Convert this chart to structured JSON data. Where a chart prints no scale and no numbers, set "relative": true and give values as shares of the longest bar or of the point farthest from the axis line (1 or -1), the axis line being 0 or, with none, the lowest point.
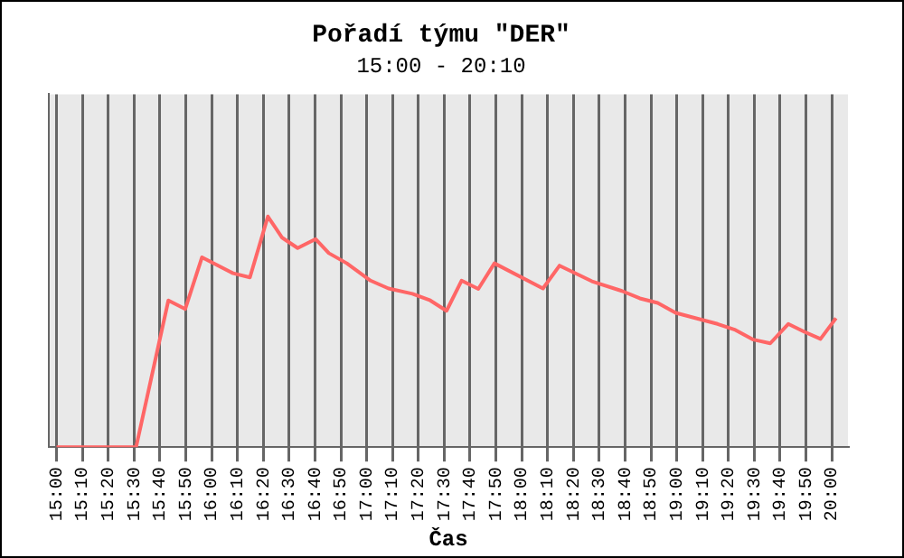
{
  "chart_data": {
    "type": "line",
    "title": "Pořadí týmu \"DER\"",
    "subtitle": "15:00 - 20:10",
    "xlabel": "Čas",
    "relative": true,
    "tick_labels": "x",
    "grid": "x",
    "legend": false,
    "marker": "none",
    "line_style": "solid",
    "x": [
      15.0,
      15.513,
      15.721,
      15.83,
      15.938,
      16.138,
      16.247,
      16.363,
      16.455,
      16.555,
      16.671,
      16.756,
      16.872,
      17.025,
      17.141,
      17.295,
      17.41,
      17.515,
      17.612,
      17.72,
      17.824,
      18.137,
      18.244,
      18.453,
      18.646,
      18.762,
      18.877,
      18.993,
      19.263,
      19.378,
      19.494,
      19.603,
      19.719,
      19.823,
      19.927,
      20.027
    ],
    "series": [
      {
        "color": "#ff6666",
        "values": [
          0,
          0,
          0.636,
          0.599,
          0.823,
          0.754,
          0.736,
          1.0,
          0.908,
          0.863,
          0.902,
          0.841,
          0.797,
          0.722,
          0.688,
          0.665,
          0.636,
          0.591,
          0.722,
          0.686,
          0.797,
          0.688,
          0.787,
          0.719,
          0.677,
          0.645,
          0.625,
          0.582,
          0.534,
          0.508,
          0.466,
          0.45,
          0.534,
          0.5,
          0.469,
          0.559
        ]
      }
    ],
    "xlim": [
      14.95,
      20.104
    ],
    "xticks": [
      {
        "value": 15,
        "label": "15:00"
      },
      {
        "value": 15.1667,
        "label": "15:10"
      },
      {
        "value": 15.3333,
        "label": "15:20"
      },
      {
        "value": 15.5,
        "label": "15:30"
      },
      {
        "value": 15.6667,
        "label": "15:40"
      },
      {
        "value": 15.8333,
        "label": "15:50"
      },
      {
        "value": 16,
        "label": "16:00"
      },
      {
        "value": 16.1667,
        "label": "16:10"
      },
      {
        "value": 16.3333,
        "label": "16:20"
      },
      {
        "value": 16.5,
        "label": "16:30"
      },
      {
        "value": 16.6667,
        "label": "16:40"
      },
      {
        "value": 16.8333,
        "label": "16:50"
      },
      {
        "value": 17,
        "label": "17:00"
      },
      {
        "value": 17.1667,
        "label": "17:10"
      },
      {
        "value": 17.3333,
        "label": "17:20"
      },
      {
        "value": 17.5,
        "label": "17:30"
      },
      {
        "value": 17.6667,
        "label": "17:40"
      },
      {
        "value": 17.8333,
        "label": "17:50"
      },
      {
        "value": 18,
        "label": "18:00"
      },
      {
        "value": 18.1667,
        "label": "18:10"
      },
      {
        "value": 18.3333,
        "label": "18:20"
      },
      {
        "value": 18.5,
        "label": "18:30"
      },
      {
        "value": 18.6667,
        "label": "18:40"
      },
      {
        "value": 18.8333,
        "label": "18:50"
      },
      {
        "value": 19,
        "label": "19:00"
      },
      {
        "value": 19.1667,
        "label": "19:10"
      },
      {
        "value": 19.3333,
        "label": "19:20"
      },
      {
        "value": 19.5,
        "label": "19:30"
      },
      {
        "value": 19.6667,
        "label": "19:40"
      },
      {
        "value": 19.8333,
        "label": "19:50"
      },
      {
        "value": 20,
        "label": "20:00"
      }
    ]
  }
}
